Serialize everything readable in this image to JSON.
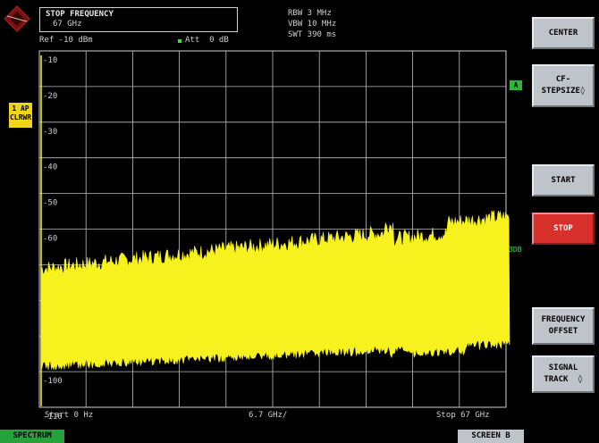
{
  "header": {
    "entry_title": "STOP FREQUENCY",
    "entry_value": "67 GHz",
    "ref_level": "Ref -10 dBm",
    "att": "Att  0 dB",
    "rbw": "RBW 3 MHz",
    "vbw": "VBW 10 MHz",
    "swt": "SWT 390 ms"
  },
  "trace_badge": [
    "1 AP",
    "CLRWR"
  ],
  "marker_a": "A",
  "label_3db": "3DB",
  "y_axis_labels": [
    "-10",
    "-20",
    "-30",
    "-40",
    "-50",
    "-60",
    "-70",
    "",
    "",
    "-100",
    "-110"
  ],
  "x_axis": {
    "start": "Start 0 Hz",
    "center": "6.7 GHz/",
    "stop": "Stop 67 GHz"
  },
  "softkeys": [
    {
      "label": "CENTER",
      "active": false
    },
    {
      "label": "CF-\nSTEPSIZE◊",
      "active": false
    },
    {
      "label": "START",
      "active": false
    },
    {
      "label": "STOP",
      "active": true
    },
    {
      "label": "FREQUENCY\nOFFSET",
      "active": false
    },
    {
      "label": "SIGNAL\nTRACK  ◊",
      "active": false
    }
  ],
  "bottom_tabs": {
    "spectrum": "SPECTRUM",
    "screen": "SCREEN B"
  },
  "colors": {
    "trace": "#f7f21e",
    "active_softkey": "#d8312b",
    "badge": "#f1d51a"
  }
}
